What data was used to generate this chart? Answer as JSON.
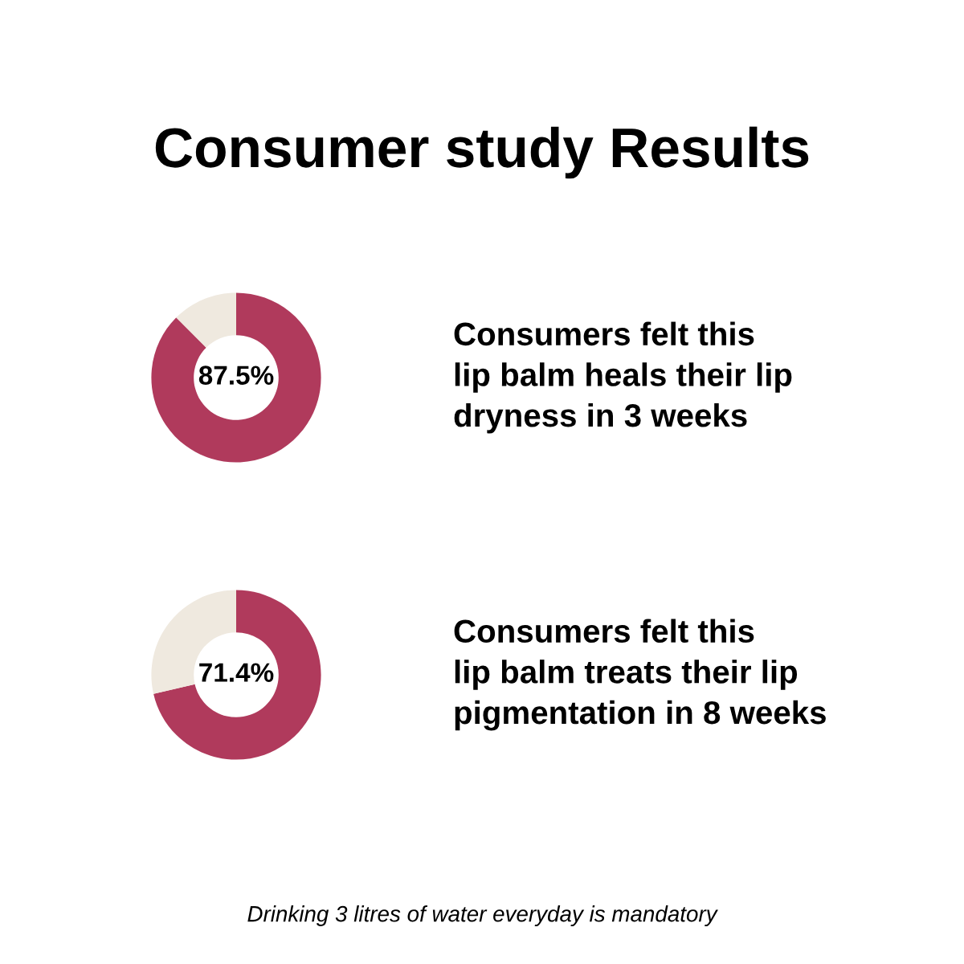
{
  "chart_data": [
    {
      "type": "donut",
      "title": "Consumer study Results",
      "categories": [
        null,
        null
      ],
      "values": [
        87.5,
        12.5
      ],
      "colors": [
        "#b03a5c",
        "#efe9df"
      ],
      "value_labels": [
        "87.5%",
        null
      ],
      "annotations": [
        "Consumers felt this\nlip balm heals their lip\ndryness in 3 weeks"
      ]
    },
    {
      "type": "donut",
      "categories": [
        null,
        null
      ],
      "values": [
        71.4,
        28.6
      ],
      "colors": [
        "#b03a5c",
        "#efe9df"
      ],
      "value_labels": [
        "71.4%",
        null
      ],
      "annotations": [
        "Consumers felt this\nlip balm treats their lip\npigmentation in 8 weeks",
        "Drinking 3 litres of water everyday is mandatory"
      ]
    }
  ]
}
